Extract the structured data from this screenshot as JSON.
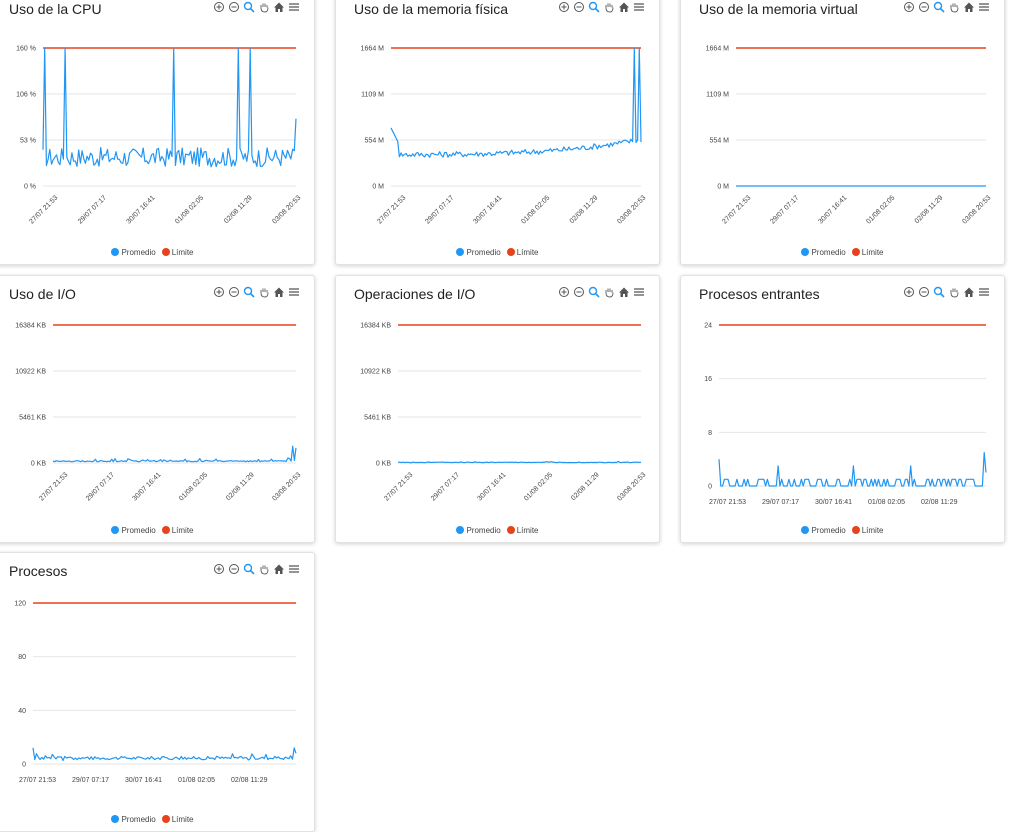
{
  "colors": {
    "average": "#2196f3",
    "limit": "#e8421c"
  },
  "toolbar_icons": [
    "zoom-in-icon",
    "zoom-out-icon",
    "zoom-selection-icon",
    "pan-hand-icon",
    "home-reset-icon",
    "menu-icon"
  ],
  "legend": {
    "average": "Promedio",
    "limit": "Límite"
  },
  "cards": [
    {
      "id": "cpu",
      "title": "Uso de la CPU",
      "chart_data": {
        "type": "line",
        "title": "Uso de la CPU",
        "y_ticks": [
          "160 %",
          "106 %",
          "53 %",
          "0 %"
        ],
        "x_ticks": [
          "27/07 21:53",
          "29/07 07:17",
          "30/07 16:41",
          "01/08 02:05",
          "02/08 11:29",
          "03/08 20:53"
        ],
        "x_tick_rotation": -45,
        "ylim": [
          0,
          160
        ],
        "limit": 160,
        "series": [
          {
            "name": "Promedio",
            "pattern": "spiky",
            "base": 30,
            "noise": 14,
            "spikes": [
              0.005,
              0.09,
              0.52,
              0.77,
              0.82
            ],
            "spike_value": 160,
            "end_value": 78
          },
          {
            "name": "Límite",
            "value": 160
          }
        ]
      }
    },
    {
      "id": "physical-memory",
      "title": "Uso de la memoria física",
      "chart_data": {
        "type": "line",
        "title": "Uso de la memoria física",
        "y_ticks": [
          "1664 M",
          "1109 M",
          "554 M",
          "0 M"
        ],
        "x_ticks": [
          "27/07 21:53",
          "29/07 07:17",
          "30/07 16:41",
          "01/08 02:05",
          "02/08 11:29",
          "03/08 20:53"
        ],
        "x_tick_rotation": -45,
        "ylim": [
          0,
          1664
        ],
        "limit": 1664,
        "series": [
          {
            "name": "Promedio",
            "pattern": "bowl",
            "start": 700,
            "base": 380,
            "end": 560,
            "noise": 35,
            "spikes": [
              0.975,
              0.995
            ],
            "spike_value": 1664
          },
          {
            "name": "Límite",
            "value": 1664
          }
        ]
      }
    },
    {
      "id": "virtual-memory",
      "title": "Uso de la memoria virtual",
      "chart_data": {
        "type": "line",
        "title": "Uso de la memoria virtual",
        "y_ticks": [
          "1664 M",
          "1109 M",
          "554 M",
          "0 M"
        ],
        "x_ticks": [
          "27/07 21:53",
          "29/07 07:17",
          "30/07 16:41",
          "01/08 02:05",
          "02/08 11:29",
          "03/08 20:53"
        ],
        "x_tick_rotation": -45,
        "ylim": [
          0,
          1664
        ],
        "limit": 1664,
        "series": [
          {
            "name": "Promedio",
            "pattern": "flat",
            "base": 0
          },
          {
            "name": "Límite",
            "value": 1664
          }
        ]
      }
    },
    {
      "id": "io-usage",
      "title": "Uso de I/O",
      "chart_data": {
        "type": "line",
        "title": "Uso de I/O",
        "y_ticks": [
          "16384 KB",
          "10922 KB",
          "5461 KB",
          "0 KB"
        ],
        "x_ticks": [
          "27/07 21:53",
          "29/07 07:17",
          "30/07 16:41",
          "01/08 02:05",
          "02/08 11:29",
          "03/08 20:53"
        ],
        "x_tick_rotation": -45,
        "ylim": [
          0,
          16384
        ],
        "limit": 16384,
        "series": [
          {
            "name": "Promedio",
            "pattern": "lowtail",
            "base": 150,
            "noise": 220,
            "tail": [
              2000,
              300,
              1800
            ]
          },
          {
            "name": "Límite",
            "value": 16384
          }
        ]
      }
    },
    {
      "id": "io-operations",
      "title": "Operaciones de I/O",
      "chart_data": {
        "type": "line",
        "title": "Operaciones de I/O",
        "y_ticks": [
          "16384 KB",
          "10922 KB",
          "5461 KB",
          "0 KB"
        ],
        "x_ticks": [
          "27/07 21:53",
          "29/07 07:17",
          "30/07 16:41",
          "01/08 02:05",
          "02/08 11:29",
          "03/08 20:53"
        ],
        "x_tick_rotation": -45,
        "ylim": [
          0,
          16384
        ],
        "limit": 16384,
        "series": [
          {
            "name": "Promedio",
            "pattern": "lownoise",
            "base": 60,
            "noise": 90
          },
          {
            "name": "Límite",
            "value": 16384
          }
        ]
      }
    },
    {
      "id": "incoming-processes",
      "title": "Procesos entrantes",
      "chart_data": {
        "type": "line",
        "title": "Procesos entrantes",
        "y_ticks": [
          "24",
          "16",
          "8",
          "0"
        ],
        "x_ticks": [
          "27/07 21:53",
          "29/07 07:17",
          "30/07 16:41",
          "01/08 02:05",
          "02/08 11:29"
        ],
        "x_tick_rotation": 0,
        "ylim": [
          0,
          24
        ],
        "limit": 24,
        "series": [
          {
            "name": "Promedio",
            "pattern": "steps",
            "levels": [
              0,
              1
            ],
            "first": 4,
            "peaks": [
              3,
              3,
              3
            ],
            "last": [
              5,
              2
            ]
          },
          {
            "name": "Límite",
            "value": 24
          }
        ]
      }
    },
    {
      "id": "processes",
      "title": "Procesos",
      "chart_data": {
        "type": "line",
        "title": "Procesos",
        "y_ticks": [
          "120",
          "80",
          "40",
          "0"
        ],
        "x_ticks": [
          "27/07 21:53",
          "29/07 07:17",
          "30/07 16:41",
          "01/08 02:05",
          "02/08 11:29"
        ],
        "x_tick_rotation": 0,
        "ylim": [
          0,
          120
        ],
        "limit": 120,
        "series": [
          {
            "name": "Promedio",
            "pattern": "lownoise",
            "base": 4,
            "noise": 3,
            "first": 12,
            "last": [
              12,
              8
            ]
          },
          {
            "name": "Límite",
            "value": 120
          }
        ]
      }
    }
  ]
}
